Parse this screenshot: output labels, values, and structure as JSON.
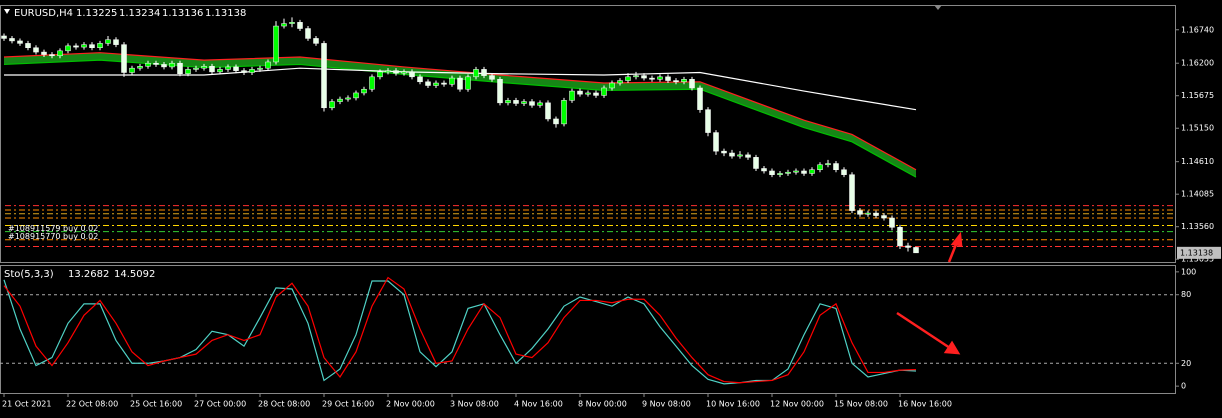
{
  "chart_data": [
    {
      "type": "candlestick",
      "symbol": "EURUSD,H4",
      "categories": [
        "21 Oct 2021",
        null,
        null,
        null,
        null,
        null,
        null,
        null,
        "22 Oct 08:00",
        null,
        null,
        null,
        null,
        null,
        null,
        null,
        "25 Oct 16:00",
        null,
        null,
        null,
        null,
        null,
        null,
        null,
        "27 Oct 00:00",
        null,
        null,
        null,
        null,
        null,
        null,
        null,
        "28 Oct 08:00",
        null,
        null,
        null,
        null,
        null,
        null,
        null,
        "29 Oct 16:00",
        null,
        null,
        null,
        null,
        null,
        null,
        null,
        "2 Nov 00:00",
        null,
        null,
        null,
        null,
        null,
        null,
        null,
        "3 Nov 08:00",
        null,
        null,
        null,
        null,
        null,
        null,
        null,
        "4 Nov 16:00",
        null,
        null,
        null,
        null,
        null,
        null,
        null,
        "8 Nov 00:00",
        null,
        null,
        null,
        null,
        null,
        null,
        null,
        "9 Nov 08:00",
        null,
        null,
        null,
        null,
        null,
        null,
        null,
        "10 Nov 16:00",
        null,
        null,
        null,
        null,
        null,
        null,
        null,
        "12 Nov 00:00",
        null,
        null,
        null,
        null,
        null,
        null,
        null,
        "15 Nov 08:00",
        null,
        null,
        null,
        null,
        null,
        null,
        null,
        "16 Nov 16:00",
        null,
        null
      ],
      "open": [
        1.1664,
        1.166,
        1.1656,
        1.1652,
        1.1645,
        1.1638,
        1.1634,
        1.1632,
        1.164,
        1.1648,
        1.1646,
        1.165,
        1.1645,
        1.1652,
        1.1658,
        1.165,
        1.1605,
        1.1612,
        1.1615,
        1.162,
        1.1618,
        1.1614,
        1.162,
        1.1603,
        1.161,
        1.1612,
        1.1615,
        1.1606,
        1.161,
        1.1614,
        1.1608,
        1.1605,
        1.161,
        1.1612,
        1.1622,
        1.168,
        1.1684,
        1.1686,
        1.1676,
        1.166,
        1.1652,
        1.1548,
        1.1558,
        1.1562,
        1.1564,
        1.1572,
        1.1578,
        1.1598,
        1.1606,
        1.1608,
        1.1604,
        1.1606,
        1.1598,
        1.159,
        1.1584,
        1.1588,
        1.1586,
        1.1596,
        1.1578,
        1.1598,
        1.161,
        1.16,
        1.1594,
        1.1556,
        1.156,
        1.1555,
        1.1558,
        1.1552,
        1.1556,
        1.153,
        1.1522,
        1.156,
        1.1575,
        1.157,
        1.1572,
        1.1568,
        1.158,
        1.1588,
        1.1592,
        1.1598,
        1.16,
        1.1596,
        1.1594,
        1.1598,
        1.1592,
        1.159,
        1.1594,
        1.158,
        1.1545,
        1.1508,
        1.1478,
        1.1475,
        1.147,
        1.1472,
        1.1468,
        1.145,
        1.1446,
        1.144,
        1.1442,
        1.1444,
        1.1446,
        1.1442,
        1.1448,
        1.1456,
        1.1458,
        1.1448,
        1.144,
        1.1382,
        1.1376,
        1.1378,
        1.1374,
        1.137,
        1.1355,
        1.1325,
        1.13225
      ],
      "high": [
        1.1668,
        1.1664,
        1.166,
        1.1656,
        1.1649,
        1.1642,
        1.1638,
        1.1644,
        1.1652,
        1.1652,
        1.1654,
        1.1654,
        1.1656,
        1.1664,
        1.1662,
        1.1654,
        1.1616,
        1.1619,
        1.1624,
        1.1624,
        1.1622,
        1.1624,
        1.1624,
        1.1614,
        1.1616,
        1.1619,
        1.1619,
        1.1614,
        1.1618,
        1.1618,
        1.1612,
        1.1614,
        1.1616,
        1.1626,
        1.1688,
        1.1692,
        1.1694,
        1.169,
        1.168,
        1.1664,
        1.1656,
        1.1562,
        1.1566,
        1.1568,
        1.1576,
        1.1582,
        1.1602,
        1.161,
        1.1612,
        1.1612,
        1.161,
        1.161,
        1.1602,
        1.1594,
        1.1592,
        1.1592,
        1.16,
        1.16,
        1.1602,
        1.1614,
        1.1614,
        1.1604,
        1.1598,
        1.1564,
        1.1564,
        1.1562,
        1.1562,
        1.156,
        1.156,
        1.1534,
        1.1564,
        1.1579,
        1.1579,
        1.1576,
        1.1576,
        1.1584,
        1.1592,
        1.1596,
        1.1604,
        1.1606,
        1.1604,
        1.16,
        1.1602,
        1.1602,
        1.1596,
        1.1598,
        1.1598,
        1.1584,
        1.1549,
        1.1512,
        1.1482,
        1.148,
        1.1478,
        1.1476,
        1.1472,
        1.1454,
        1.145,
        1.1446,
        1.1448,
        1.145,
        1.145,
        1.1452,
        1.146,
        1.1464,
        1.1462,
        1.1452,
        1.1444,
        1.1386,
        1.1382,
        1.1382,
        1.1378,
        1.1374,
        1.1359,
        1.133,
        1.13234
      ],
      "low": [
        1.1656,
        1.1652,
        1.1648,
        1.1641,
        1.1634,
        1.163,
        1.1628,
        1.1628,
        1.1636,
        1.1642,
        1.1642,
        1.1641,
        1.1641,
        1.1648,
        1.1646,
        1.1598,
        1.1601,
        1.1608,
        1.1611,
        1.1614,
        1.161,
        1.161,
        1.1599,
        1.1599,
        1.1606,
        1.1608,
        1.1602,
        1.1602,
        1.1606,
        1.1604,
        1.1601,
        1.1601,
        1.1606,
        1.1608,
        1.1618,
        1.1676,
        1.1678,
        1.1672,
        1.1656,
        1.1648,
        1.1542,
        1.1544,
        1.1554,
        1.1558,
        1.156,
        1.1568,
        1.1574,
        1.1594,
        1.1602,
        1.16,
        1.16,
        1.1594,
        1.1586,
        1.158,
        1.158,
        1.1582,
        1.1582,
        1.1574,
        1.1574,
        1.1594,
        1.1596,
        1.159,
        1.1552,
        1.1552,
        1.1551,
        1.1551,
        1.1548,
        1.1548,
        1.1526,
        1.1516,
        1.1518,
        1.1556,
        1.1566,
        1.1566,
        1.1564,
        1.1564,
        1.1576,
        1.1584,
        1.1588,
        1.1594,
        1.1592,
        1.159,
        1.159,
        1.1588,
        1.1586,
        1.1586,
        1.1576,
        1.154,
        1.1502,
        1.1472,
        1.147,
        1.1466,
        1.1466,
        1.1464,
        1.1446,
        1.1442,
        1.1436,
        1.1436,
        1.1438,
        1.144,
        1.1438,
        1.1438,
        1.1444,
        1.1452,
        1.1444,
        1.1436,
        1.1378,
        1.1372,
        1.1372,
        1.137,
        1.1366,
        1.135,
        1.132,
        1.1316,
        1.13136
      ],
      "close": [
        1.166,
        1.1656,
        1.1652,
        1.1645,
        1.1638,
        1.1634,
        1.1632,
        1.164,
        1.1648,
        1.1646,
        1.165,
        1.1645,
        1.1652,
        1.1658,
        1.165,
        1.1605,
        1.1612,
        1.1615,
        1.162,
        1.1618,
        1.1614,
        1.162,
        1.1603,
        1.161,
        1.1612,
        1.1615,
        1.1606,
        1.161,
        1.1614,
        1.1608,
        1.1605,
        1.161,
        1.1612,
        1.1622,
        1.168,
        1.1684,
        1.1686,
        1.1676,
        1.166,
        1.1652,
        1.1548,
        1.1558,
        1.1562,
        1.1564,
        1.1572,
        1.1578,
        1.1598,
        1.1606,
        1.1608,
        1.1604,
        1.1606,
        1.1598,
        1.159,
        1.1584,
        1.1588,
        1.1586,
        1.1596,
        1.1578,
        1.1598,
        1.161,
        1.16,
        1.1594,
        1.1556,
        1.156,
        1.1555,
        1.1558,
        1.1552,
        1.1556,
        1.153,
        1.1522,
        1.156,
        1.1575,
        1.157,
        1.1572,
        1.1568,
        1.158,
        1.1588,
        1.1592,
        1.1598,
        1.16,
        1.1596,
        1.1594,
        1.1598,
        1.1592,
        1.159,
        1.1594,
        1.158,
        1.1545,
        1.1508,
        1.1478,
        1.1475,
        1.147,
        1.1472,
        1.1468,
        1.145,
        1.1446,
        1.144,
        1.1442,
        1.1444,
        1.1446,
        1.1442,
        1.1448,
        1.1456,
        1.1458,
        1.1448,
        1.144,
        1.1382,
        1.1376,
        1.1378,
        1.1374,
        1.137,
        1.1355,
        1.1325,
        1.13225,
        1.13138
      ],
      "up_color": "#00ff00",
      "down_color": "#e8ffe8",
      "overlays": [
        {
          "x": [
            0,
            12,
            25,
            37,
            50,
            62,
            75,
            87,
            100,
            106,
            114
          ],
          "values": [
            1.163,
            1.1637,
            1.1625,
            1.163,
            1.1614,
            1.1601,
            1.1588,
            1.159,
            1.1528,
            1.1505,
            1.1448
          ],
          "color": "#ff2020"
        },
        {
          "x": [
            0,
            12,
            25,
            37,
            50,
            62,
            75,
            87,
            100,
            106,
            114
          ],
          "values": [
            1.1618,
            1.1625,
            1.1613,
            1.1618,
            1.1602,
            1.1589,
            1.1576,
            1.1578,
            1.1516,
            1.1493,
            1.1436
          ],
          "color": "#00c000"
        },
        {
          "x": [
            0,
            12,
            25,
            37,
            50,
            62,
            75,
            87,
            100,
            106,
            114
          ],
          "values": [
            1.1601,
            1.1601,
            1.1601,
            1.1612,
            1.1606,
            1.1603,
            1.1601,
            1.1605,
            1.1575,
            1.1562,
            1.1545
          ],
          "color": "#ffffff"
        }
      ],
      "ribbon_color": "#1a9e1a",
      "levels": [
        {
          "value": 1.139,
          "color": "#ff3030"
        },
        {
          "value": 1.1383,
          "color": "#ff8c00"
        },
        {
          "value": 1.1377,
          "color": "#daa520"
        },
        {
          "value": 1.137,
          "color": "#ff8c00"
        },
        {
          "value": 1.1358,
          "color": "#ffd700"
        },
        {
          "value": 1.1348,
          "color": "#32cd32",
          "label": "#108911579 buy 0.02"
        },
        {
          "value": 1.1335,
          "color": "#ff8c00",
          "label": "#108915770 buy 0.02"
        },
        {
          "value": 1.1324,
          "color": "#ff3030"
        }
      ],
      "ylim": [
        1.1299,
        1.1714
      ],
      "yticks": [
        {
          "value": 1.1674,
          "label": "1.16740"
        },
        {
          "value": 1.162,
          "label": "1.16200"
        },
        1.15675,
        {
          "value": 1.1515,
          "label": "1.15150"
        },
        {
          "value": 1.1461,
          "label": "1.14610"
        },
        1.14085,
        {
          "value": 1.1356,
          "label": "1.13560"
        },
        1.13035
      ]
    },
    {
      "type": "line",
      "title": "Sto(5,3,3)",
      "x": [
        0,
        2,
        4,
        6,
        8,
        10,
        12,
        14,
        16,
        18,
        20,
        22,
        24,
        26,
        28,
        30,
        32,
        34,
        36,
        38,
        40,
        42,
        44,
        46,
        48,
        50,
        52,
        54,
        56,
        58,
        60,
        62,
        64,
        66,
        68,
        70,
        72,
        74,
        76,
        78,
        80,
        82,
        84,
        86,
        88,
        90,
        92,
        94,
        96,
        98,
        100,
        102,
        104,
        106,
        108,
        110,
        112,
        114
      ],
      "series": [
        {
          "color": "#4fd1c5",
          "values": [
            93,
            50,
            18,
            25,
            55,
            72,
            72,
            40,
            20,
            20,
            22,
            25,
            32,
            48,
            45,
            35,
            60,
            86,
            85,
            55,
            5,
            15,
            45,
            92,
            92,
            80,
            30,
            17,
            30,
            68,
            72,
            45,
            20,
            33,
            50,
            70,
            78,
            74,
            70,
            78,
            72,
            52,
            35,
            18,
            6,
            2,
            3,
            5,
            5,
            15,
            45,
            72,
            68,
            20,
            8,
            11,
            14,
            13.2682
          ]
        },
        {
          "color": "#ff0000",
          "values": [
            88,
            70,
            35,
            18,
            38,
            62,
            75,
            55,
            30,
            18,
            22,
            25,
            28,
            40,
            45,
            40,
            45,
            78,
            90,
            70,
            25,
            8,
            30,
            70,
            95,
            85,
            50,
            20,
            22,
            50,
            72,
            60,
            28,
            25,
            38,
            60,
            75,
            75,
            73,
            76,
            76,
            62,
            42,
            25,
            10,
            4,
            3,
            4,
            5,
            10,
            30,
            62,
            72,
            38,
            12,
            12,
            14,
            14.5092
          ]
        }
      ],
      "ylim": [
        -6,
        106
      ],
      "yticks": [
        100,
        80,
        20,
        0
      ],
      "levels": [
        80,
        20
      ]
    }
  ]
}
